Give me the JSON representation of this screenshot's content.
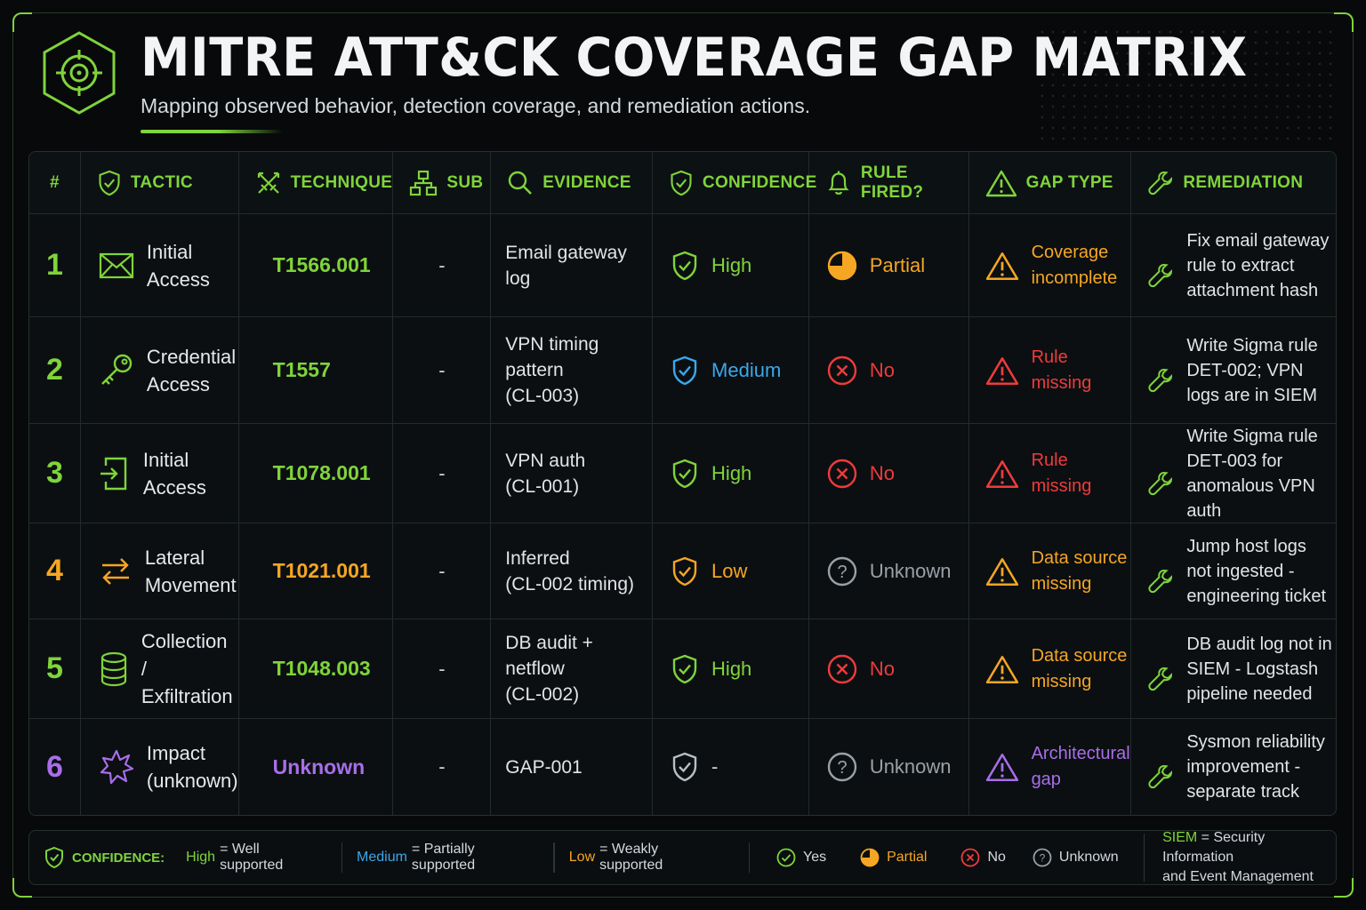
{
  "header": {
    "title": "MITRE ATT&CK COVERAGE GAP MATRIX",
    "subtitle": "Mapping observed behavior, detection coverage, and remediation actions."
  },
  "colors": {
    "green": "#7fd43a",
    "blue": "#3ba8ea",
    "orange": "#f5a623",
    "red": "#ef3b3b",
    "purple": "#a86ee8",
    "gray": "#9aa1a6"
  },
  "columns": [
    {
      "label": "#",
      "icon": "hash"
    },
    {
      "label": "TACTIC",
      "icon": "shield-icon"
    },
    {
      "label": "TECHNIQUE",
      "icon": "crossed-swords-icon"
    },
    {
      "label": "SUB",
      "icon": "hierarchy-icon"
    },
    {
      "label": "EVIDENCE",
      "icon": "magnifier-icon"
    },
    {
      "label": "CONFIDENCE",
      "icon": "shield-check-icon"
    },
    {
      "label": "RULE FIRED?",
      "icon": "bell-icon"
    },
    {
      "label": "GAP TYPE",
      "icon": "warning-icon"
    },
    {
      "label": "REMEDIATION",
      "icon": "wrench-icon"
    }
  ],
  "rows": [
    {
      "num": "1",
      "tactic": "Initial\nAccess",
      "tactic_icon": "envelope-icon",
      "technique": "T1566.001",
      "sub": "-",
      "evidence": "Email gateway log",
      "confidence": "High",
      "rule_fired": "Partial",
      "gap_type": "Coverage\nincomplete",
      "remediation": "Fix email gateway\nrule to extract\nattachment hash"
    },
    {
      "num": "2",
      "tactic": "Credential\nAccess",
      "tactic_icon": "key-icon",
      "technique": "T1557",
      "sub": "-",
      "evidence": "VPN timing pattern\n(CL-003)",
      "confidence": "Medium",
      "rule_fired": "No",
      "gap_type": "Rule\nmissing",
      "remediation": "Write Sigma rule\nDET-002; VPN\nlogs are in SIEM"
    },
    {
      "num": "3",
      "tactic": "Initial\nAccess",
      "tactic_icon": "login-icon",
      "technique": "T1078.001",
      "sub": "-",
      "evidence": "VPN auth\n(CL-001)",
      "confidence": "High",
      "rule_fired": "No",
      "gap_type": "Rule\nmissing",
      "remediation": "Write Sigma rule\nDET-003 for\nanomalous VPN auth"
    },
    {
      "num": "4",
      "tactic": "Lateral\nMovement",
      "tactic_icon": "arrows-exchange-icon",
      "technique": "T1021.001",
      "sub": "-",
      "evidence": "Inferred\n(CL-002 timing)",
      "confidence": "Low",
      "rule_fired": "Unknown",
      "gap_type": "Data source\nmissing",
      "remediation": "Jump host logs\nnot ingested -\nengineering ticket"
    },
    {
      "num": "5",
      "tactic": "Collection /\nExfiltration",
      "tactic_icon": "database-icon",
      "technique": "T1048.003",
      "sub": "-",
      "evidence": "DB audit +\nnetflow\n(CL-002)",
      "confidence": "High",
      "rule_fired": "No",
      "gap_type": "Data source\nmissing",
      "remediation": "DB audit log not in\nSIEM - Logstash\npipeline needed"
    },
    {
      "num": "6",
      "tactic": "Impact\n(unknown)",
      "tactic_icon": "burst-icon",
      "technique": "Unknown",
      "sub": "-",
      "evidence": "GAP-001",
      "confidence": "-",
      "rule_fired": "Unknown",
      "gap_type": "Architectural\ngap",
      "remediation": "Sysmon reliability\nimprovement -\nseparate track"
    }
  ],
  "legend": {
    "confidence_label": "CONFIDENCE:",
    "high_key": "High",
    "high_desc": "= Well supported",
    "medium_key": "Medium",
    "medium_desc": "= Partially supported",
    "low_key": "Low",
    "low_desc": "= Weakly supported",
    "yes": "Yes",
    "partial": "Partial",
    "no": "No",
    "unknown": "Unknown",
    "siem_key": "SIEM",
    "siem_desc": "= Security Information",
    "siem_desc2": "and Event Management"
  }
}
